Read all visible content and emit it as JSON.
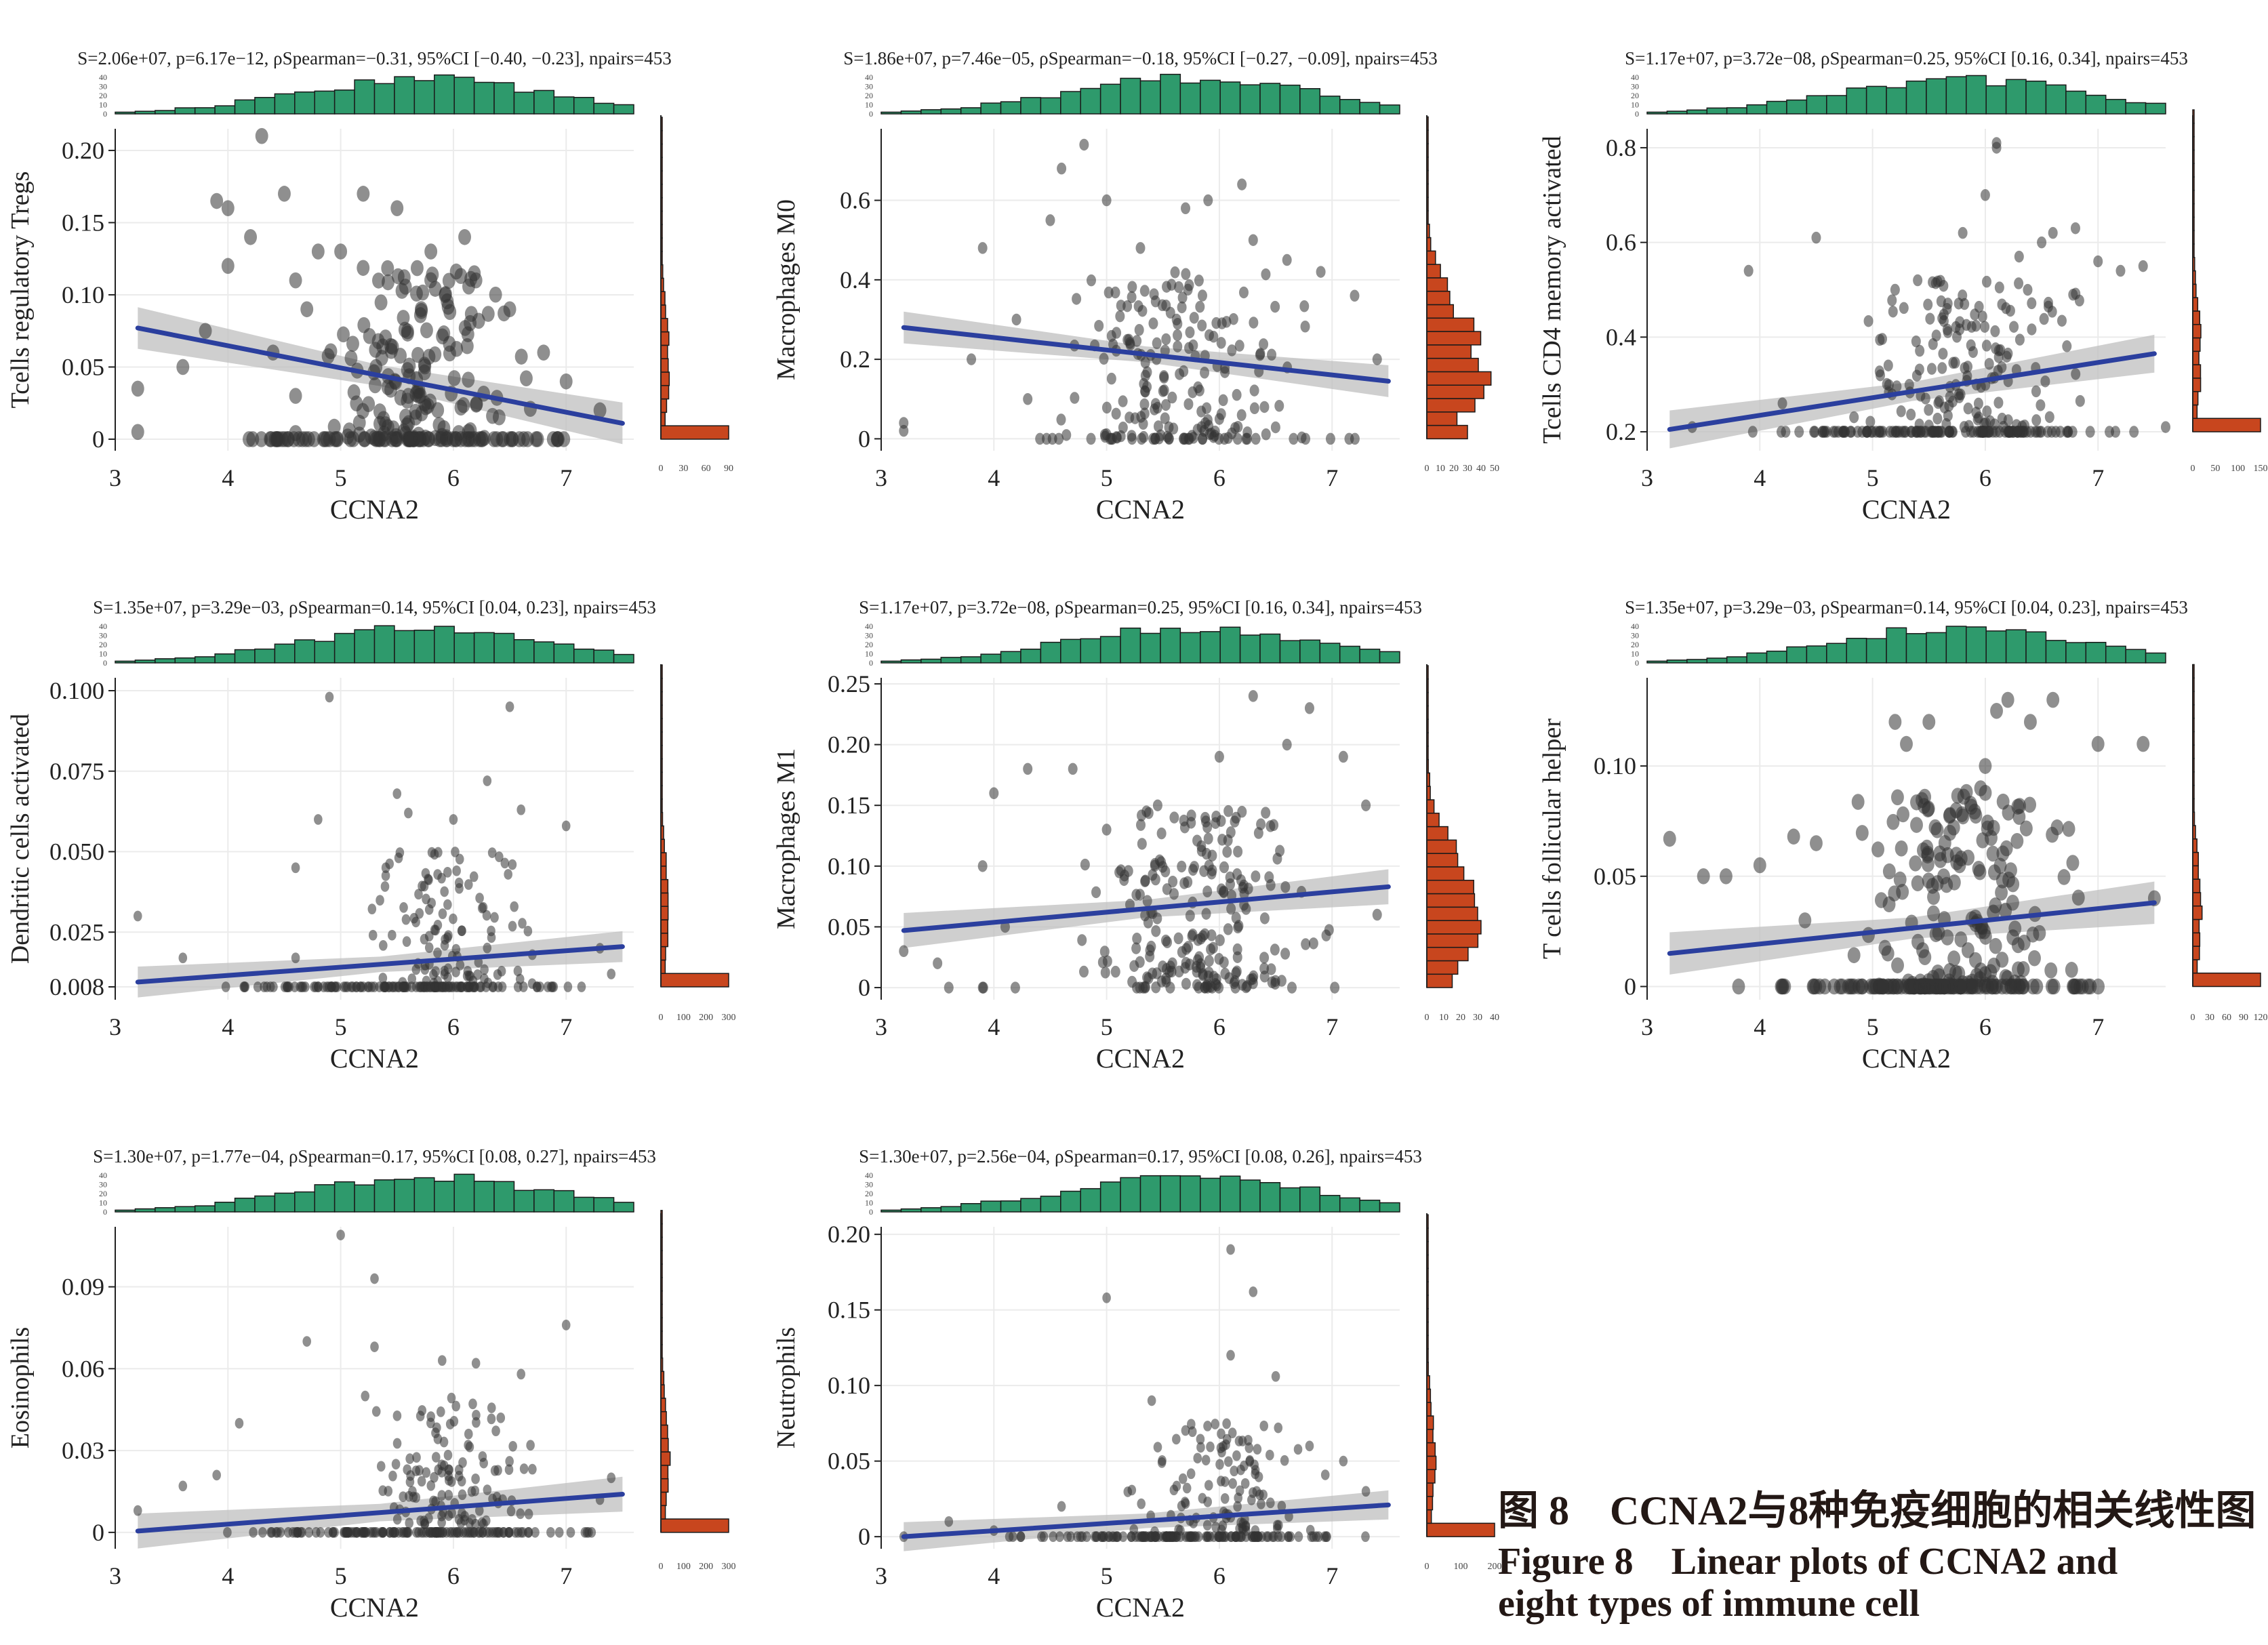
{
  "caption": {
    "chinese": "图 8　CCNA2与8种免疫细胞的相关线性图",
    "english_line1": "Figure 8　Linear plots of CCNA2 and",
    "english_line2": "eight types of immune cell"
  },
  "colors": {
    "hist_top": "#2e9a6c",
    "hist_right": "#c8461e",
    "regression": "#2b3f9e",
    "ci_band": "#bfbfbf",
    "points": "#333333",
    "grid": "#ebebeb"
  },
  "chart_data": [
    {
      "type": "scatter",
      "panel": 1,
      "stats": "S=2.06e+07, p=6.17e−12, ρSpearman=−0.31, 95%CI [−0.40, −0.23], npairs=453",
      "xlabel": "CCNA2",
      "ylabel": "Tcells regulatory Tregs",
      "x_ticks": [
        "3",
        "4",
        "5",
        "6",
        "7"
      ],
      "xlim": [
        3,
        7.6
      ],
      "y_ticks": [
        {
          "value": 0,
          "label": "0"
        },
        {
          "value": 0.05,
          "label": "0.05"
        },
        {
          "value": 0.1,
          "label": "0.10"
        },
        {
          "value": 0.15,
          "label": "0.15"
        },
        {
          "value": 0.2,
          "label": "0.20"
        }
      ],
      "ylim": [
        -0.008,
        0.215
      ],
      "fit": {
        "x": [
          3.2,
          7.5
        ],
        "y": [
          0.077,
          0.011
        ],
        "ci_halfwidth": 0.009
      },
      "top_hist_ticks": [
        "0",
        "10",
        "20",
        "30",
        "40"
      ],
      "right_hist_ticks": [
        "0",
        "30",
        "60",
        "90"
      ],
      "right_hist_max": 90,
      "zero_count": 90,
      "point_size": 1.35,
      "points": [
        [
          3.6,
          0.05
        ],
        [
          3.8,
          0.075
        ],
        [
          3.9,
          0.165
        ],
        [
          4.0,
          0.16
        ],
        [
          4.2,
          0.14
        ],
        [
          4.3,
          0.21
        ],
        [
          4.5,
          0.17
        ],
        [
          4.6,
          0.11
        ],
        [
          4.0,
          0.12
        ],
        [
          4.4,
          0.06
        ],
        [
          4.7,
          0.09
        ],
        [
          4.8,
          0.13
        ],
        [
          5.0,
          0.13
        ],
        [
          5.2,
          0.17
        ],
        [
          5.5,
          0.16
        ],
        [
          5.8,
          0.13
        ],
        [
          6.1,
          0.14
        ],
        [
          6.5,
          0.09
        ],
        [
          6.8,
          0.06
        ],
        [
          7.0,
          0.04
        ],
        [
          3.2,
          0.035
        ],
        [
          3.2,
          0.005
        ],
        [
          7.3,
          0.02
        ],
        [
          4.6,
          0.03
        ],
        [
          6.2,
          0.11
        ],
        [
          5.6,
          0.03
        ]
      ],
      "extra_points": 150,
      "extra_seed": 11,
      "extra_x": [
        4.5,
        6.8
      ],
      "extra_y": [
        0.0,
        0.12
      ]
    },
    {
      "type": "scatter",
      "panel": 2,
      "stats": "S=1.86e+07, p=7.46e−05, ρSpearman=−0.18, 95%CI [−0.27, −0.09], npairs=453",
      "xlabel": "CCNA2",
      "ylabel": "Macrophages M0",
      "x_ticks": [
        "3",
        "4",
        "5",
        "6",
        "7"
      ],
      "xlim": [
        3,
        7.6
      ],
      "y_ticks": [
        {
          "value": 0,
          "label": "0"
        },
        {
          "value": 0.2,
          "label": "0.2"
        },
        {
          "value": 0.4,
          "label": "0.4"
        },
        {
          "value": 0.6,
          "label": "0.6"
        }
      ],
      "ylim": [
        -0.03,
        0.78
      ],
      "fit": {
        "x": [
          3.2,
          7.5
        ],
        "y": [
          0.28,
          0.145
        ],
        "ci_halfwidth": 0.025
      },
      "top_hist_ticks": [
        "0",
        "10",
        "20",
        "30",
        "40"
      ],
      "right_hist_ticks": [
        "0",
        "10",
        "20",
        "30",
        "40",
        "50"
      ],
      "right_hist_max": 50,
      "zero_count": 30,
      "point_size": 1.0,
      "points": [
        [
          3.2,
          0.04
        ],
        [
          3.2,
          0.02
        ],
        [
          3.9,
          0.48
        ],
        [
          4.2,
          0.3
        ],
        [
          4.5,
          0.55
        ],
        [
          4.6,
          0.68
        ],
        [
          4.8,
          0.74
        ],
        [
          5.0,
          0.6
        ],
        [
          5.3,
          0.48
        ],
        [
          5.7,
          0.58
        ],
        [
          5.9,
          0.6
        ],
        [
          6.2,
          0.64
        ],
        [
          6.3,
          0.5
        ],
        [
          6.6,
          0.45
        ],
        [
          6.9,
          0.42
        ],
        [
          7.2,
          0.36
        ],
        [
          7.4,
          0.2
        ],
        [
          4.3,
          0.1
        ],
        [
          3.8,
          0.2
        ],
        [
          5.5,
          0.12
        ],
        [
          6.0,
          0.05
        ],
        [
          6.4,
          0.08
        ]
      ],
      "extra_points": 170,
      "extra_seed": 23,
      "extra_x": [
        4.3,
        7.0
      ],
      "extra_y": [
        0.0,
        0.42
      ]
    },
    {
      "type": "scatter",
      "panel": 3,
      "stats": "S=1.17e+07, p=3.72e−08, ρSpearman=0.25, 95%CI [0.16, 0.34], npairs=453",
      "xlabel": "CCNA2",
      "ylabel": "Tcells CD4 memory activated",
      "x_ticks": [
        "3",
        "4",
        "5",
        "6",
        "7"
      ],
      "xlim": [
        3,
        7.6
      ],
      "y_ticks": [
        {
          "value": 0.2,
          "label": "0.2"
        },
        {
          "value": 0.4,
          "label": "0.4"
        },
        {
          "value": 0.6,
          "label": "0.6"
        },
        {
          "value": 0.8,
          "label": "0.8"
        }
      ],
      "ylim": [
        0.16,
        0.84
      ],
      "fit": {
        "x": [
          3.2,
          7.5
        ],
        "y": [
          0.205,
          0.365
        ],
        "ci_halfwidth": 0.025
      },
      "baseline_value": 0.2,
      "top_hist_ticks": [
        "0",
        "10",
        "20",
        "30",
        "40"
      ],
      "right_hist_ticks": [
        "0",
        "50",
        "100",
        "150"
      ],
      "right_hist_max": 150,
      "zero_count": 150,
      "point_size": 1.0,
      "points": [
        [
          3.9,
          0.54
        ],
        [
          4.5,
          0.61
        ],
        [
          5.2,
          0.5
        ],
        [
          5.4,
          0.52
        ],
        [
          5.8,
          0.62
        ],
        [
          6.1,
          0.8
        ],
        [
          6.1,
          0.81
        ],
        [
          6.3,
          0.57
        ],
        [
          6.6,
          0.62
        ],
        [
          6.8,
          0.63
        ],
        [
          7.0,
          0.56
        ],
        [
          7.2,
          0.54
        ],
        [
          7.4,
          0.55
        ],
        [
          7.6,
          0.21
        ],
        [
          4.2,
          0.26
        ],
        [
          3.4,
          0.21
        ],
        [
          6.0,
          0.7
        ],
        [
          6.5,
          0.6
        ]
      ],
      "extra_points": 150,
      "extra_seed": 37,
      "extra_x": [
        4.6,
        7.2
      ],
      "extra_y": [
        0.21,
        0.52
      ]
    },
    {
      "type": "scatter",
      "panel": 4,
      "stats": "S=1.35e+07, p=3.29e−03, ρSpearman=0.14, 95%CI [0.04, 0.23], npairs=453",
      "xlabel": "CCNA2",
      "ylabel": "Dendritic cells activated",
      "x_ticks": [
        "3",
        "4",
        "5",
        "6",
        "7"
      ],
      "xlim": [
        3,
        7.6
      ],
      "y_ticks": [
        {
          "value": 0.008,
          "label": "0.008"
        },
        {
          "value": 0.025,
          "label": "0.025"
        },
        {
          "value": 0.05,
          "label": "0.050"
        },
        {
          "value": 0.075,
          "label": "0.075"
        },
        {
          "value": 0.1,
          "label": "0.100"
        }
      ],
      "ylim": [
        0.004,
        0.104
      ],
      "fit": {
        "x": [
          3.2,
          7.5
        ],
        "y": [
          0.0095,
          0.0205
        ],
        "ci_halfwidth": 0.003
      },
      "baseline_value": 0.008,
      "top_hist_ticks": [
        "0",
        "10",
        "20",
        "30",
        "40"
      ],
      "right_hist_ticks": [
        "0",
        "100",
        "200",
        "300"
      ],
      "right_hist_max": 300,
      "zero_count": 300,
      "point_size": 0.9,
      "points": [
        [
          3.2,
          0.03
        ],
        [
          3.6,
          0.017
        ],
        [
          4.6,
          0.017
        ],
        [
          4.6,
          0.045
        ],
        [
          4.8,
          0.06
        ],
        [
          4.9,
          0.098
        ],
        [
          5.4,
          0.045
        ],
        [
          5.5,
          0.068
        ],
        [
          5.6,
          0.062
        ],
        [
          6.0,
          0.06
        ],
        [
          6.3,
          0.072
        ],
        [
          6.5,
          0.095
        ],
        [
          6.6,
          0.063
        ],
        [
          7.0,
          0.058
        ],
        [
          7.3,
          0.02
        ],
        [
          7.4,
          0.012
        ]
      ],
      "extra_points": 110,
      "extra_seed": 41,
      "extra_x": [
        5.0,
        7.0
      ],
      "extra_y": [
        0.009,
        0.05
      ]
    },
    {
      "type": "scatter",
      "panel": 5,
      "stats": "S=1.17e+07, p=3.72e−08, ρSpearman=0.25, 95%CI [0.16, 0.34], npairs=453",
      "xlabel": "CCNA2",
      "ylabel": "Macrophages M1",
      "x_ticks": [
        "3",
        "4",
        "5",
        "6",
        "7"
      ],
      "xlim": [
        3,
        7.6
      ],
      "y_ticks": [
        {
          "value": 0,
          "label": "0"
        },
        {
          "value": 0.05,
          "label": "0.05"
        },
        {
          "value": 0.1,
          "label": "0.10"
        },
        {
          "value": 0.15,
          "label": "0.15"
        },
        {
          "value": 0.2,
          "label": "0.20"
        },
        {
          "value": 0.25,
          "label": "0.25"
        }
      ],
      "ylim": [
        -0.01,
        0.255
      ],
      "fit": {
        "x": [
          3.2,
          7.5
        ],
        "y": [
          0.047,
          0.083
        ],
        "ci_halfwidth": 0.009
      },
      "top_hist_ticks": [
        "0",
        "10",
        "20",
        "30",
        "40"
      ],
      "right_hist_ticks": [
        "0",
        "10",
        "20",
        "30",
        "40"
      ],
      "right_hist_max": 40,
      "zero_count": 15,
      "point_size": 1.0,
      "points": [
        [
          3.2,
          0.03
        ],
        [
          3.5,
          0.02
        ],
        [
          3.6,
          0.0
        ],
        [
          3.9,
          0.0
        ],
        [
          3.9,
          0.1
        ],
        [
          4.0,
          0.16
        ],
        [
          4.3,
          0.18
        ],
        [
          4.7,
          0.18
        ],
        [
          5.0,
          0.13
        ],
        [
          5.6,
          0.14
        ],
        [
          6.0,
          0.19
        ],
        [
          6.3,
          0.24
        ],
        [
          6.6,
          0.2
        ],
        [
          6.8,
          0.23
        ],
        [
          7.1,
          0.19
        ],
        [
          7.3,
          0.15
        ],
        [
          4.1,
          0.05
        ],
        [
          7.4,
          0.06
        ]
      ],
      "extra_points": 210,
      "extra_seed": 53,
      "extra_x": [
        4.5,
        7.2
      ],
      "extra_y": [
        0.0,
        0.15
      ]
    },
    {
      "type": "scatter",
      "panel": 6,
      "stats": "S=1.35e+07, p=3.29e−03, ρSpearman=0.14, 95%CI [0.04, 0.23], npairs=453",
      "xlabel": "CCNA2",
      "ylabel": "T cells follicular helper",
      "x_ticks": [
        "3",
        "4",
        "5",
        "6",
        "7"
      ],
      "xlim": [
        3,
        7.6
      ],
      "y_ticks": [
        {
          "value": 0,
          "label": "0"
        },
        {
          "value": 0.05,
          "label": "0.05"
        },
        {
          "value": 0.1,
          "label": "0.10"
        }
      ],
      "ylim": [
        -0.006,
        0.14
      ],
      "fit": {
        "x": [
          3.2,
          7.5
        ],
        "y": [
          0.015,
          0.038
        ],
        "ci_halfwidth": 0.006
      },
      "top_hist_ticks": [
        "0",
        "10",
        "20",
        "30",
        "40"
      ],
      "right_hist_ticks": [
        "0",
        "30",
        "60",
        "90",
        "120"
      ],
      "right_hist_max": 120,
      "zero_count": 120,
      "point_size": 1.35,
      "points": [
        [
          3.2,
          0.067
        ],
        [
          3.5,
          0.05
        ],
        [
          3.7,
          0.05
        ],
        [
          4.0,
          0.055
        ],
        [
          4.3,
          0.068
        ],
        [
          4.5,
          0.065
        ],
        [
          5.2,
          0.12
        ],
        [
          5.3,
          0.11
        ],
        [
          5.5,
          0.12
        ],
        [
          6.0,
          0.1
        ],
        [
          6.1,
          0.125
        ],
        [
          6.2,
          0.13
        ],
        [
          6.4,
          0.12
        ],
        [
          6.6,
          0.13
        ],
        [
          7.0,
          0.11
        ],
        [
          7.4,
          0.11
        ],
        [
          7.5,
          0.04
        ],
        [
          4.4,
          0.03
        ]
      ],
      "extra_points": 170,
      "extra_seed": 67,
      "extra_x": [
        4.6,
        7.2
      ],
      "extra_y": [
        0.0,
        0.09
      ]
    },
    {
      "type": "scatter",
      "panel": 7,
      "stats": "S=1.30e+07, p=1.77e−04, ρSpearman=0.17, 95%CI [0.08, 0.27], npairs=453",
      "xlabel": "CCNA2",
      "ylabel": "Eosinophils",
      "x_ticks": [
        "3",
        "4",
        "5",
        "6",
        "7"
      ],
      "xlim": [
        3,
        7.6
      ],
      "y_ticks": [
        {
          "value": 0,
          "label": "0"
        },
        {
          "value": 0.03,
          "label": "0.03"
        },
        {
          "value": 0.06,
          "label": "0.06"
        },
        {
          "value": 0.09,
          "label": "0.09"
        }
      ],
      "ylim": [
        -0.006,
        0.112
      ],
      "fit": {
        "x": [
          3.2,
          7.5
        ],
        "y": [
          0.0005,
          0.014
        ],
        "ci_halfwidth": 0.004
      },
      "top_hist_ticks": [
        "0",
        "10",
        "20",
        "30",
        "40"
      ],
      "right_hist_ticks": [
        "0",
        "100",
        "200",
        "300"
      ],
      "right_hist_max": 300,
      "zero_count": 300,
      "point_size": 0.9,
      "points": [
        [
          3.2,
          0.008
        ],
        [
          3.6,
          0.017
        ],
        [
          3.9,
          0.021
        ],
        [
          4.1,
          0.04
        ],
        [
          4.7,
          0.07
        ],
        [
          5.0,
          0.109
        ],
        [
          5.3,
          0.093
        ],
        [
          5.3,
          0.068
        ],
        [
          5.9,
          0.063
        ],
        [
          6.2,
          0.062
        ],
        [
          6.6,
          0.058
        ],
        [
          7.0,
          0.076
        ],
        [
          7.4,
          0.02
        ],
        [
          7.3,
          0.012
        ]
      ],
      "extra_points": 120,
      "extra_seed": 79,
      "extra_x": [
        5.0,
        7.0
      ],
      "extra_y": [
        0.003,
        0.05
      ]
    },
    {
      "type": "scatter",
      "panel": 8,
      "stats": "S=1.30e+07, p=2.56e−04, ρSpearman=0.17, 95%CI [0.08, 0.26], npairs=453",
      "xlabel": "CCNA2",
      "ylabel": "Neutrophils",
      "x_ticks": [
        "3",
        "4",
        "5",
        "6",
        "7"
      ],
      "xlim": [
        3,
        7.6
      ],
      "y_ticks": [
        {
          "value": 0,
          "label": "0"
        },
        {
          "value": 0.05,
          "label": "0.05"
        },
        {
          "value": 0.1,
          "label": "0.10"
        },
        {
          "value": 0.15,
          "label": "0.15"
        },
        {
          "value": 0.2,
          "label": "0.20"
        }
      ],
      "ylim": [
        -0.008,
        0.205
      ],
      "fit": {
        "x": [
          3.2,
          7.5
        ],
        "y": [
          0.0,
          0.021
        ],
        "ci_halfwidth": 0.006
      },
      "top_hist_ticks": [
        "0",
        "10",
        "20",
        "30",
        "40"
      ],
      "right_hist_ticks": [
        "0",
        "100",
        "200"
      ],
      "right_hist_max": 200,
      "zero_count": 200,
      "point_size": 0.9,
      "points": [
        [
          3.2,
          0.0
        ],
        [
          3.6,
          0.01
        ],
        [
          4.0,
          0.004
        ],
        [
          5.0,
          0.158
        ],
        [
          5.4,
          0.09
        ],
        [
          6.1,
          0.19
        ],
        [
          6.3,
          0.162
        ],
        [
          6.5,
          0.106
        ],
        [
          6.1,
          0.12
        ],
        [
          6.8,
          0.06
        ],
        [
          7.1,
          0.05
        ],
        [
          7.3,
          0.03
        ],
        [
          4.6,
          0.02
        ]
      ],
      "extra_points": 110,
      "extra_seed": 97,
      "extra_x": [
        5.0,
        7.0
      ],
      "extra_y": [
        0.003,
        0.075
      ]
    }
  ]
}
